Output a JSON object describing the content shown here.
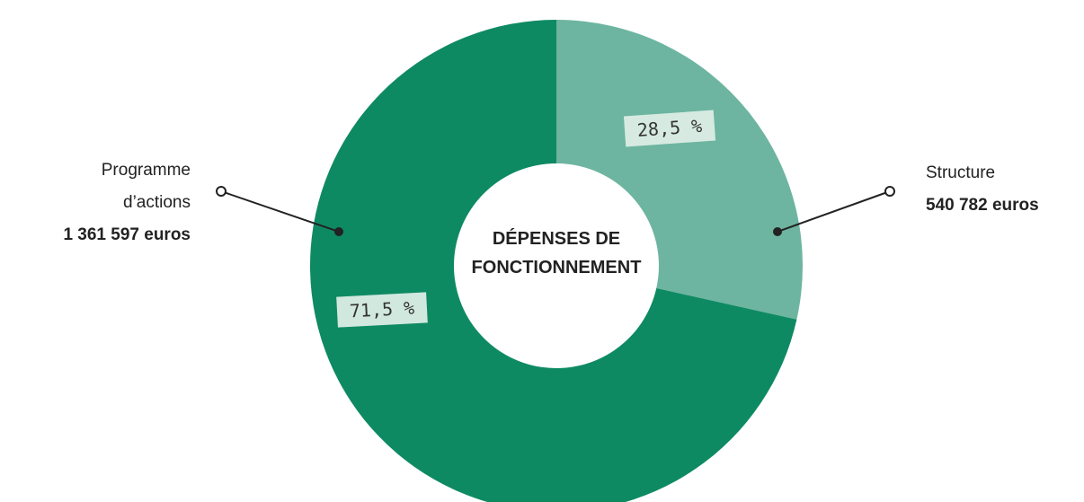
{
  "chart_data": {
    "type": "donut",
    "title": "DÉPENSES DE FONCTIONNEMENT",
    "categories": [
      "Structure",
      "Programme d’actions"
    ],
    "values": [
      28.5,
      71.5
    ],
    "value_labels": [
      "28,5 %",
      "71,5 %"
    ],
    "amount_labels": [
      "540 782 euros",
      "1 361 597 euros"
    ],
    "colors": [
      "#6db5a0",
      "#0e8a63"
    ]
  }
}
